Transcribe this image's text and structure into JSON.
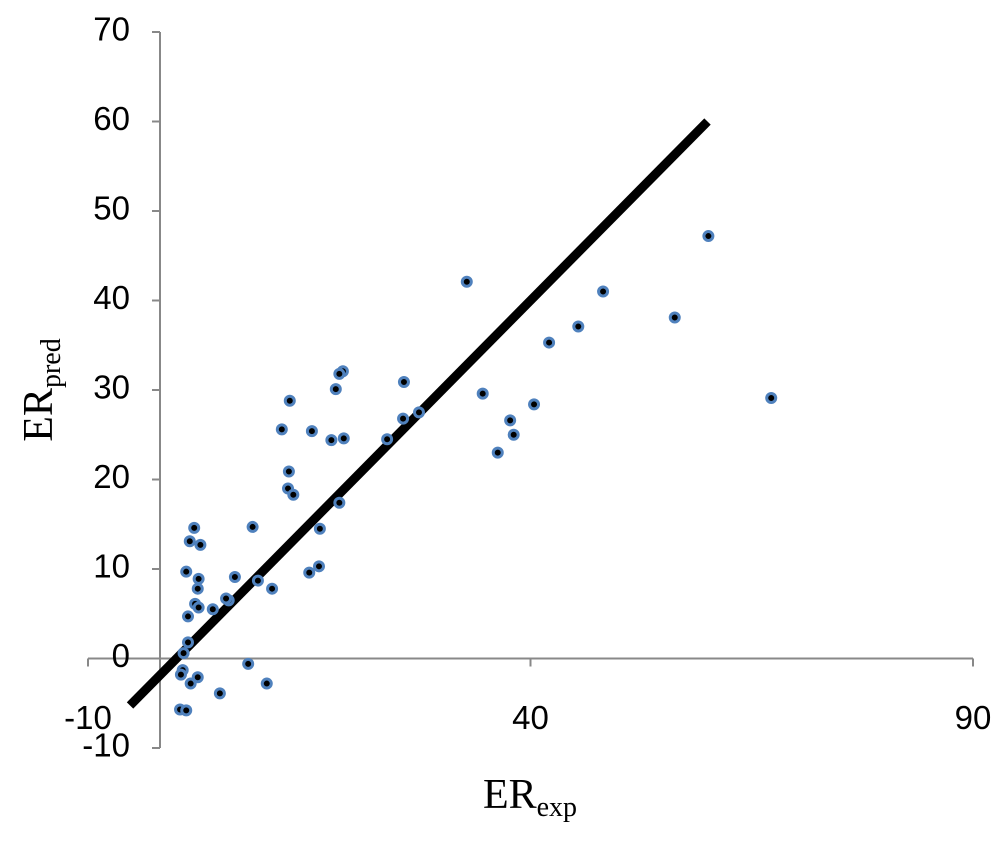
{
  "chart_data": {
    "type": "scatter",
    "xlabel": "ER",
    "xlabel_sub": "exp",
    "ylabel": "ER",
    "ylabel_sub": "pred",
    "xlim": [
      -10,
      90
    ],
    "xticks": [
      -10,
      40,
      90
    ],
    "ylim": [
      -10,
      70
    ],
    "yticks": [
      -10,
      0,
      10,
      20,
      30,
      40,
      50,
      60,
      70
    ],
    "series": [
      {
        "color": "#000000",
        "edge_color": "#4f81bd",
        "x": [
          32.8,
          60.1,
          48.2,
          45.4,
          56.3,
          42.1,
          67.2,
          40.4,
          34.6,
          37.7,
          38.1,
          36.3,
          27.4,
          25.7,
          25.6,
          23.8,
          18.8,
          18.4,
          18.0,
          18.9,
          17.5,
          15.3,
          11.9,
          12.8,
          12.7,
          12.6,
          13.2,
          18.4,
          16.2,
          16.1,
          15.0,
          8.6,
          9.2,
          10.8,
          6.6,
          5.9,
          5.6,
          4.1,
          2.0,
          1.5,
          2.7,
          1.1,
          2.5,
          2.4,
          2.1,
          2.5,
          1.3,
          1.3,
          0.8,
          0.7,
          0.5,
          2.4,
          1.6,
          8.1,
          4.9,
          10.2,
          0.4,
          1.1
        ],
        "values": [
          42.1,
          47.2,
          41.0,
          37.1,
          38.1,
          35.3,
          29.1,
          28.4,
          29.6,
          26.6,
          25.0,
          23.0,
          27.5,
          30.9,
          26.8,
          24.5,
          32.1,
          31.8,
          30.1,
          24.6,
          24.4,
          25.4,
          25.6,
          28.8,
          20.9,
          19.0,
          18.3,
          17.4,
          14.5,
          10.3,
          9.6,
          14.7,
          8.7,
          7.8,
          9.1,
          6.5,
          6.7,
          5.5,
          14.6,
          13.1,
          12.7,
          9.7,
          8.9,
          7.8,
          6.1,
          5.7,
          4.7,
          1.8,
          0.6,
          -1.3,
          -1.8,
          -2.1,
          -2.8,
          -0.6,
          -3.9,
          -2.8,
          -5.7,
          -5.8
        ]
      }
    ],
    "trend_line": {
      "color": "#000000",
      "x": [
        -5.25,
        60
      ],
      "values": [
        -5.25,
        60
      ]
    }
  }
}
